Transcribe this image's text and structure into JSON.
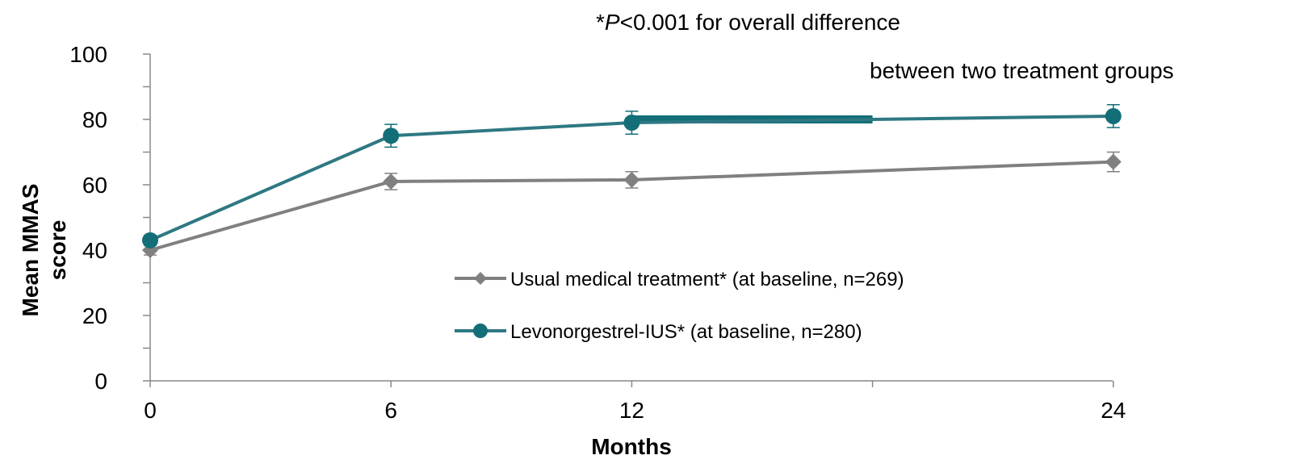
{
  "chart_data": {
    "type": "line",
    "x": [
      0,
      6,
      12,
      24
    ],
    "xticks": [
      "0",
      "6",
      "12",
      "24"
    ],
    "xlabel": "Months",
    "ylabel": [
      "Mean MMAS",
      "score"
    ],
    "yticks": [
      "0",
      "20",
      "40",
      "60",
      "80",
      "100"
    ],
    "ylim": [
      0,
      100
    ],
    "grid": false,
    "legend_position": "center",
    "series": [
      {
        "name": "Usual medical treatment* (at baseline, n=269)",
        "marker": "diamond",
        "color": "#808080",
        "values": [
          40,
          61,
          61.5,
          67
        ],
        "error": [
          1.5,
          2.5,
          2.5,
          3
        ]
      },
      {
        "name": "Levonorgestrel-IUS* (at baseline, n=280)",
        "marker": "circle",
        "color": "#2E7882",
        "values": [
          43,
          75,
          79,
          81
        ],
        "error": [
          1.5,
          3.5,
          3.5,
          3.5
        ]
      }
    ],
    "annotation": {
      "star": "*",
      "p": "P",
      "rest": "<0.001 for overall difference",
      "line2": "between two treatment groups"
    },
    "highlight_bar": {
      "x_from": 12,
      "x_to": 18,
      "y": 80,
      "color": "#136E78"
    }
  }
}
